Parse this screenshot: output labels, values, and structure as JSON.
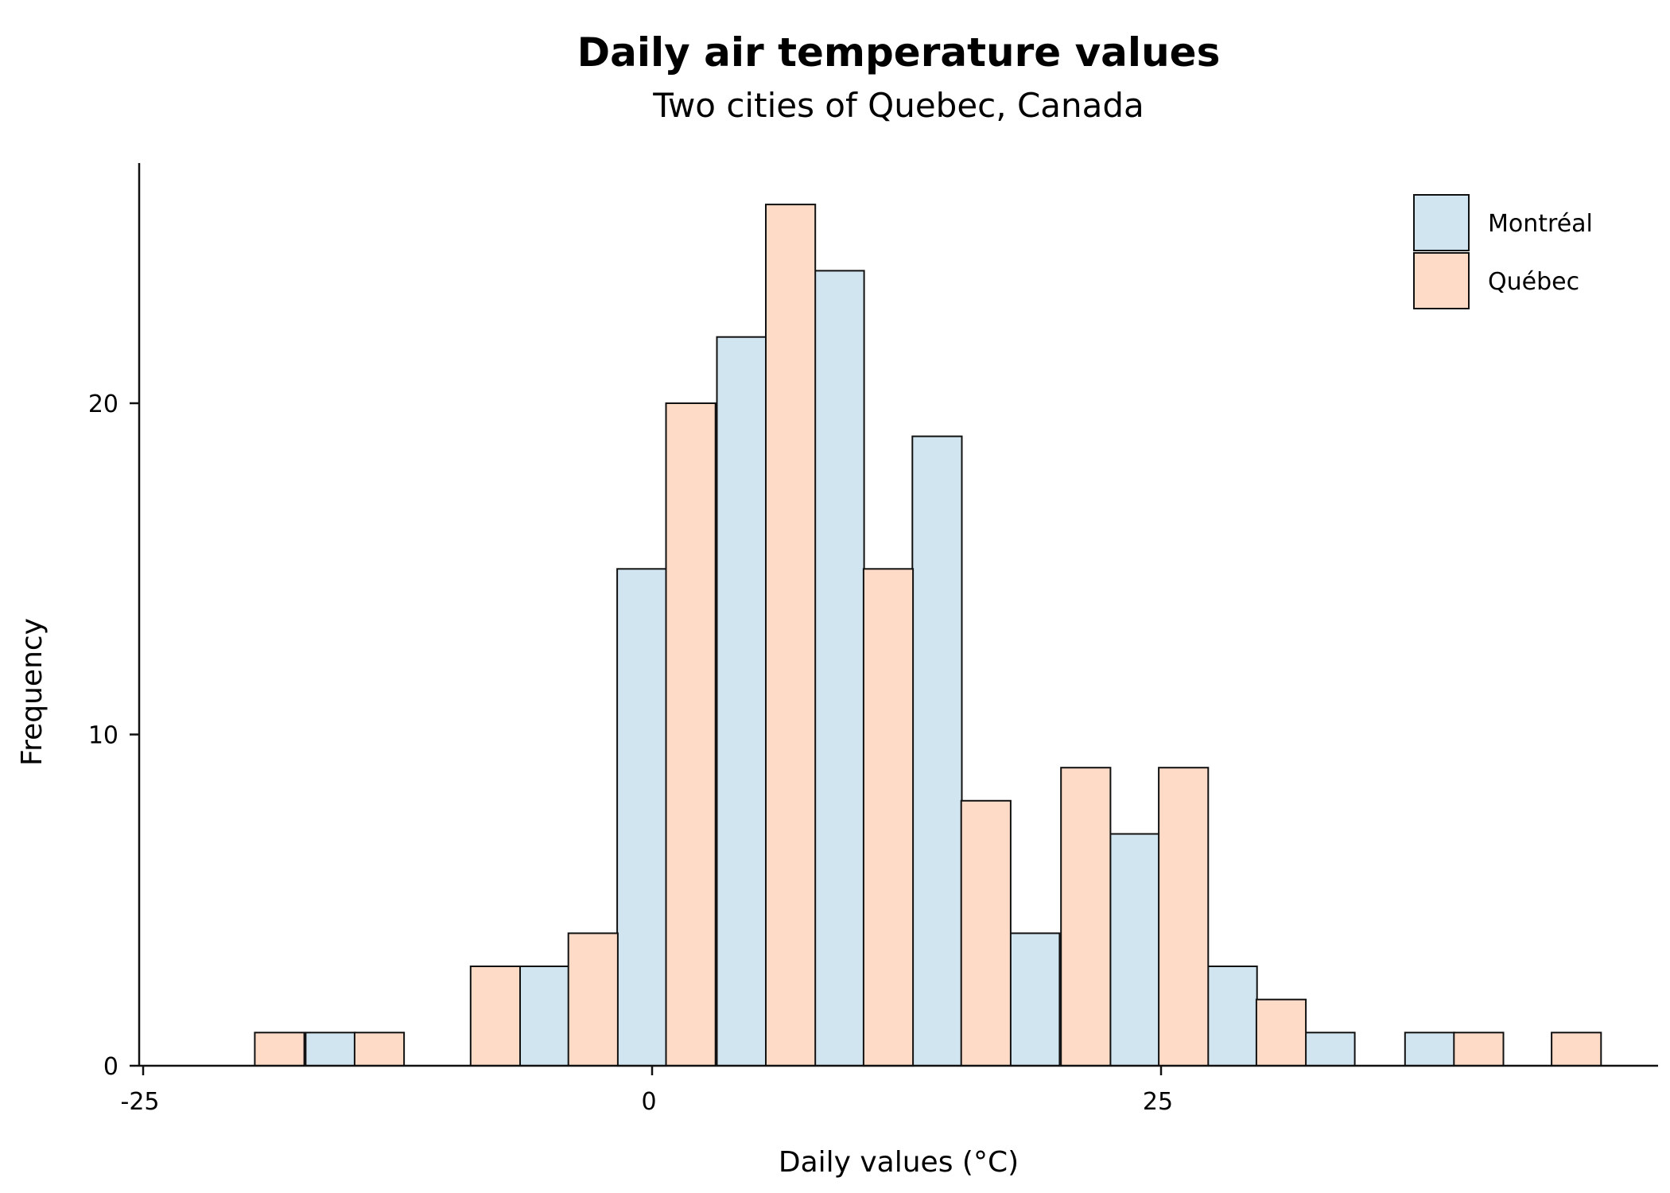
{
  "chart_data": {
    "type": "bar",
    "title": "Daily air temperature values",
    "subtitle": "Two cities of Quebec, Canada",
    "xlabel": "Daily values (°C)",
    "ylabel": "Frequency",
    "xlim": [
      -25,
      50
    ],
    "ylim": [
      0,
      26
    ],
    "x_ticks": [
      -25,
      0,
      25
    ],
    "y_ticks": [
      0,
      10,
      20
    ],
    "x_tick_labels": [
      "-25",
      "0",
      "25"
    ],
    "y_tick_labels": [
      "0",
      "10",
      "20"
    ],
    "grid": false,
    "legend_position": "top-right",
    "bar_width": 2.43,
    "series": [
      {
        "name": "Montréal",
        "color": "#d1e5f0",
        "points": [
          {
            "x": -15.8,
            "y": 1
          },
          {
            "x": -5.3,
            "y": 3
          },
          {
            "x": -0.5,
            "y": 15
          },
          {
            "x": 4.4,
            "y": 22
          },
          {
            "x": 9.2,
            "y": 24
          },
          {
            "x": 14.0,
            "y": 19
          },
          {
            "x": 18.8,
            "y": 4
          },
          {
            "x": 23.7,
            "y": 7
          },
          {
            "x": 28.5,
            "y": 3
          },
          {
            "x": 33.3,
            "y": 1
          },
          {
            "x": 38.2,
            "y": 1
          }
        ]
      },
      {
        "name": "Québec",
        "color": "#fddbc7",
        "points": [
          {
            "x": -18.3,
            "y": 1
          },
          {
            "x": -13.4,
            "y": 1
          },
          {
            "x": -7.7,
            "y": 3
          },
          {
            "x": -2.9,
            "y": 4
          },
          {
            "x": 1.9,
            "y": 20
          },
          {
            "x": 6.8,
            "y": 26
          },
          {
            "x": 11.6,
            "y": 15
          },
          {
            "x": 16.4,
            "y": 8
          },
          {
            "x": 21.3,
            "y": 9
          },
          {
            "x": 26.1,
            "y": 9
          },
          {
            "x": 30.9,
            "y": 2
          },
          {
            "x": 40.6,
            "y": 1
          },
          {
            "x": 45.4,
            "y": 1
          }
        ]
      }
    ]
  }
}
